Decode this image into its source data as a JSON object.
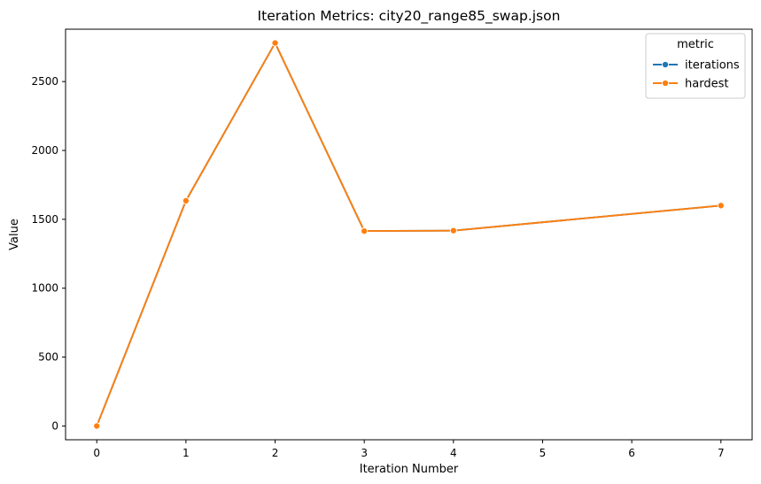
{
  "chart_data": {
    "type": "line",
    "title": "Iteration Metrics: city20_range85_swap.json",
    "xlabel": "Iteration Number",
    "ylabel": "Value",
    "x": [
      0,
      1,
      2,
      3,
      4,
      7
    ],
    "xticks": [
      0,
      1,
      2,
      3,
      4,
      5,
      6,
      7
    ],
    "yticks": [
      0,
      500,
      1000,
      1500,
      2000,
      2500
    ],
    "xlim": [
      -0.35,
      7.35
    ],
    "ylim": [
      -100,
      2880
    ],
    "grid": false,
    "legend": {
      "title": "metric",
      "position": "top-right"
    },
    "series": [
      {
        "name": "iterations",
        "color": "#1f77b4",
        "marker": "circle",
        "values": [
          0,
          1635,
          2780,
          1415,
          1418,
          1600
        ]
      },
      {
        "name": "hardest",
        "color": "#ff7f0e",
        "marker": "circle",
        "values": [
          0,
          1635,
          2780,
          1415,
          1418,
          1600
        ]
      }
    ]
  }
}
